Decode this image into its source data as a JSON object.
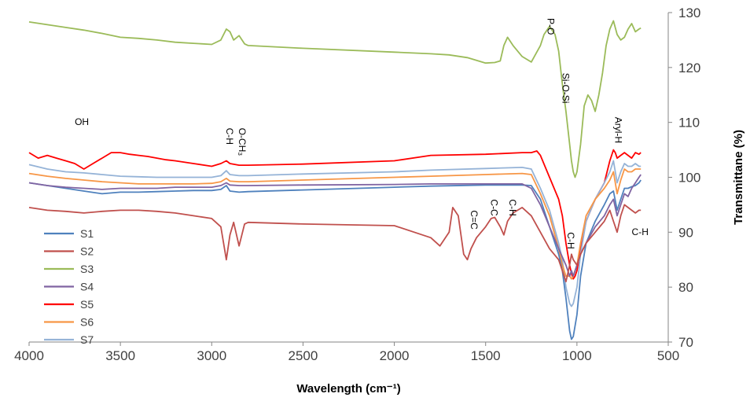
{
  "chart_data": {
    "type": "line",
    "xlabel": "Wavelength (cm⁻¹)",
    "ylabel": "Transmittane (%)",
    "xlim": [
      4000,
      500
    ],
    "ylim": [
      70,
      130
    ],
    "x_ticks": [
      4000,
      3500,
      3000,
      2500,
      2000,
      1500,
      1000,
      500
    ],
    "y_ticks": [
      70,
      80,
      90,
      100,
      110,
      120,
      130
    ],
    "grid": false,
    "legend_position": "bottom-left",
    "series": [
      {
        "name": "S1",
        "color": "#4f81bd",
        "x": [
          4000,
          3900,
          3800,
          3700,
          3600,
          3500,
          3400,
          3300,
          3200,
          3100,
          3000,
          2950,
          2920,
          2900,
          2850,
          2800,
          2500,
          2000,
          1800,
          1500,
          1300,
          1250,
          1200,
          1150,
          1100,
          1080,
          1060,
          1040,
          1030,
          1020,
          1000,
          980,
          950,
          900,
          850,
          820,
          800,
          780,
          760,
          740,
          720,
          700,
          680,
          660,
          650
        ],
        "y": [
          99,
          98.5,
          98,
          97.5,
          97,
          97.3,
          97.3,
          97.4,
          97.5,
          97.6,
          97.6,
          97.8,
          98.5,
          97.5,
          97.3,
          97.4,
          97.7,
          98.2,
          98.4,
          98.6,
          98.6,
          98.5,
          96,
          91,
          86,
          83,
          78,
          72,
          70.5,
          71,
          75,
          82,
          88,
          92,
          95,
          97,
          97.5,
          94,
          96,
          98,
          98,
          98.3,
          98.5,
          99,
          99.5
        ]
      },
      {
        "name": "S2",
        "color": "#c0504d",
        "x": [
          4000,
          3900,
          3800,
          3700,
          3600,
          3500,
          3400,
          3300,
          3200,
          3100,
          3000,
          2950,
          2920,
          2900,
          2880,
          2850,
          2820,
          2800,
          2500,
          2000,
          1800,
          1750,
          1700,
          1680,
          1650,
          1620,
          1600,
          1580,
          1550,
          1500,
          1470,
          1450,
          1420,
          1400,
          1380,
          1350,
          1300,
          1250,
          1200,
          1150,
          1100,
          1080,
          1060,
          1040,
          1030,
          1020,
          1000,
          980,
          950,
          900,
          850,
          820,
          800,
          780,
          760,
          740,
          720,
          700,
          680,
          660,
          650
        ],
        "y": [
          94.5,
          94,
          93.8,
          93.5,
          93.8,
          94,
          94,
          93.8,
          93.5,
          93,
          92.5,
          91,
          85,
          89.5,
          91.8,
          87.5,
          91.5,
          91.8,
          91.5,
          91.2,
          89,
          87.5,
          90,
          94.5,
          93,
          86,
          85,
          87,
          89,
          91,
          92.5,
          92.7,
          91,
          89.5,
          92,
          93.5,
          94.5,
          93,
          90,
          87,
          85,
          83,
          81,
          84,
          86,
          85,
          84,
          86,
          88,
          90,
          92,
          94,
          92,
          90,
          93,
          95,
          94.5,
          94,
          93.5,
          94,
          94
        ]
      },
      {
        "name": "S3",
        "color": "#9bbb59",
        "x": [
          4000,
          3900,
          3800,
          3700,
          3600,
          3500,
          3400,
          3300,
          3200,
          3100,
          3000,
          2950,
          2920,
          2900,
          2880,
          2850,
          2820,
          2800,
          2500,
          2000,
          1800,
          1700,
          1600,
          1500,
          1450,
          1420,
          1400,
          1380,
          1350,
          1300,
          1250,
          1200,
          1180,
          1150,
          1120,
          1100,
          1080,
          1060,
          1040,
          1030,
          1020,
          1010,
          1000,
          980,
          960,
          940,
          920,
          900,
          880,
          860,
          840,
          820,
          800,
          780,
          760,
          740,
          720,
          700,
          680,
          660,
          650
        ],
        "y": [
          128.3,
          127.8,
          127.3,
          126.8,
          126.2,
          125.5,
          125.3,
          125,
          124.6,
          124.4,
          124.2,
          125,
          127,
          126.5,
          125,
          125.8,
          124.3,
          124,
          123.5,
          122.8,
          122.5,
          122.3,
          121.8,
          120.8,
          120.9,
          121.2,
          124,
          125.5,
          124,
          122,
          121,
          124,
          126,
          127.5,
          126,
          123,
          117,
          112,
          106,
          103,
          101,
          100,
          101,
          106,
          113,
          115,
          114,
          112,
          115,
          119,
          124,
          127,
          128.5,
          126,
          125,
          125.5,
          127,
          128,
          126.5,
          127,
          127.2
        ]
      },
      {
        "name": "S4",
        "color": "#8064a2",
        "x": [
          4000,
          3900,
          3800,
          3700,
          3600,
          3500,
          3400,
          3300,
          3200,
          3100,
          3000,
          2950,
          2920,
          2900,
          2850,
          2800,
          2500,
          2000,
          1800,
          1500,
          1300,
          1250,
          1200,
          1150,
          1100,
          1060,
          1040,
          1030,
          1020,
          1000,
          980,
          950,
          900,
          850,
          820,
          800,
          780,
          760,
          740,
          720,
          700,
          680,
          660,
          650
        ],
        "y": [
          99,
          98.5,
          98.2,
          98,
          97.8,
          98,
          98,
          98,
          98.2,
          98.2,
          98.2,
          98.5,
          99,
          98.6,
          98.5,
          98.5,
          98.6,
          98.7,
          98.8,
          98.8,
          98.8,
          98,
          95,
          91,
          87,
          84,
          82,
          83,
          82,
          84,
          86,
          88,
          91,
          93,
          95,
          96,
          93,
          95,
          97,
          96.5,
          98,
          99,
          100,
          100.5
        ]
      },
      {
        "name": "S5",
        "color": "#ff0000",
        "x": [
          4000,
          3950,
          3900,
          3850,
          3800,
          3750,
          3700,
          3650,
          3600,
          3550,
          3500,
          3450,
          3400,
          3350,
          3300,
          3250,
          3200,
          3100,
          3000,
          2950,
          2920,
          2900,
          2850,
          2800,
          2500,
          2000,
          1800,
          1500,
          1300,
          1250,
          1220,
          1200,
          1150,
          1100,
          1080,
          1060,
          1040,
          1030,
          1020,
          1010,
          1000,
          980,
          950,
          900,
          850,
          820,
          800,
          790,
          780,
          760,
          740,
          720,
          700,
          680,
          660,
          650
        ],
        "y": [
          104.5,
          103.5,
          104,
          103.5,
          103,
          102.5,
          101.5,
          102.5,
          103.5,
          104.5,
          104.5,
          104.2,
          104,
          103.8,
          103.5,
          103.2,
          103,
          102.5,
          102,
          102.5,
          103,
          102.5,
          102.2,
          102.2,
          102.4,
          103,
          104,
          104.2,
          104.5,
          104.5,
          104.8,
          104,
          100,
          96,
          93,
          88,
          84,
          82.5,
          81.5,
          82,
          83,
          87,
          92,
          96,
          99,
          103,
          105,
          104.5,
          103.5,
          104,
          104.5,
          104,
          103.5,
          104.5,
          104.2,
          104.5
        ]
      },
      {
        "name": "S6",
        "color": "#f79646",
        "x": [
          4000,
          3900,
          3800,
          3700,
          3600,
          3500,
          3400,
          3300,
          3200,
          3100,
          3000,
          2950,
          2920,
          2900,
          2850,
          2800,
          2500,
          2000,
          1800,
          1500,
          1300,
          1250,
          1200,
          1150,
          1100,
          1080,
          1060,
          1040,
          1030,
          1020,
          1000,
          980,
          950,
          900,
          850,
          820,
          800,
          780,
          760,
          740,
          720,
          700,
          680,
          660,
          650
        ],
        "y": [
          100.7,
          100.2,
          99.8,
          99.5,
          99.2,
          99,
          98.8,
          98.8,
          98.8,
          98.8,
          98.9,
          99.2,
          99.8,
          99.3,
          99.2,
          99.2,
          99.5,
          100,
          100.2,
          100.5,
          100.7,
          100.5,
          97,
          93,
          87,
          84,
          82,
          82,
          81.5,
          82,
          84,
          88,
          93,
          96,
          98,
          99.5,
          101,
          97,
          99.5,
          101.5,
          101,
          101,
          101.5,
          101.5,
          101.5
        ]
      },
      {
        "name": "S7",
        "color": "#95b3d7",
        "x": [
          4000,
          3900,
          3800,
          3700,
          3600,
          3500,
          3400,
          3300,
          3200,
          3100,
          3000,
          2950,
          2920,
          2900,
          2850,
          2800,
          2500,
          2000,
          1800,
          1500,
          1300,
          1250,
          1200,
          1150,
          1100,
          1080,
          1060,
          1040,
          1030,
          1020,
          1000,
          980,
          950,
          900,
          850,
          820,
          800,
          780,
          760,
          740,
          720,
          700,
          680,
          660,
          650
        ],
        "y": [
          102.3,
          101.5,
          101,
          100.8,
          100.5,
          100.2,
          100.1,
          100,
          100,
          100,
          100,
          100.3,
          101.2,
          100.5,
          100.3,
          100.3,
          100.6,
          101,
          101.3,
          101.6,
          101.8,
          101.5,
          98,
          94,
          88,
          85,
          80,
          77,
          76.5,
          77,
          80,
          86,
          92,
          96,
          99,
          101,
          103,
          99,
          101,
          102.5,
          102,
          102,
          102.5,
          102,
          102
        ]
      }
    ],
    "annotations": [
      {
        "text": "OH",
        "x": 3750,
        "y": 109.5,
        "rotate": false
      },
      {
        "text": "C-H",
        "x": 2920,
        "y": 109,
        "rotate": true
      },
      {
        "text": "O-CH₃",
        "x": 2850,
        "y": 109,
        "rotate": true
      },
      {
        "text": "P-O",
        "x": 1160,
        "y": 129,
        "rotate": true
      },
      {
        "text": "Si-O-Si",
        "x": 1080,
        "y": 119,
        "rotate": true
      },
      {
        "text": "Aryl-H",
        "x": 790,
        "y": 111,
        "rotate": true
      },
      {
        "text": "C=C",
        "x": 1580,
        "y": 94,
        "rotate": true
      },
      {
        "text": "C-C",
        "x": 1470,
        "y": 96,
        "rotate": true
      },
      {
        "text": "C-H",
        "x": 1370,
        "y": 96,
        "rotate": true
      },
      {
        "text": "C-H",
        "x": 1050,
        "y": 90,
        "rotate": true
      },
      {
        "text": "C-H",
        "x": 700,
        "y": 89.5,
        "rotate": false
      }
    ]
  }
}
